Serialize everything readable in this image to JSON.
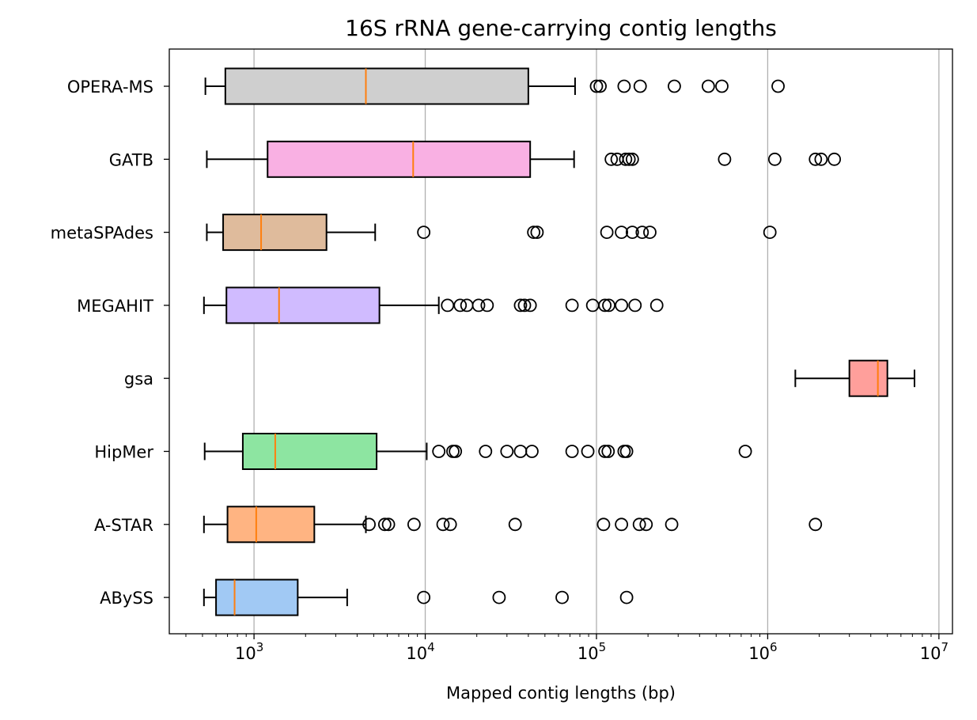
{
  "chart_data": {
    "type": "boxplot",
    "title": "16S rRNA gene-carrying contig lengths",
    "xlabel": "Mapped contig lengths (bp)",
    "ylabel": "",
    "xscale": "log",
    "xlim": [
      320,
      12000000
    ],
    "xticks": [
      {
        "value": 1000,
        "base": "10",
        "exp": "3"
      },
      {
        "value": 10000,
        "base": "10",
        "exp": "4"
      },
      {
        "value": 100000,
        "base": "10",
        "exp": "5"
      },
      {
        "value": 1000000,
        "base": "10",
        "exp": "6"
      },
      {
        "value": 10000000,
        "base": "10",
        "exp": "7"
      }
    ],
    "grid": "x-major",
    "median_color": "#ff7f0e",
    "series": [
      {
        "name": "OPERA-MS",
        "color": "#cfcfcf",
        "whisker_low": 520,
        "q1": 680,
        "median": 4500,
        "q3": 40000,
        "whisker_high": 75000,
        "outliers": [
          100000,
          105000,
          145000,
          180000,
          285000,
          450000,
          540000,
          1150000
        ]
      },
      {
        "name": "GATB",
        "color": "#f9b0e3",
        "whisker_low": 530,
        "q1": 1200,
        "median": 8500,
        "q3": 41000,
        "whisker_high": 74000,
        "outliers": [
          122000,
          132000,
          148000,
          155000,
          162000,
          560000,
          1100000,
          1900000,
          2050000,
          2450000
        ]
      },
      {
        "name": "metaSPAdes",
        "color": "#dfbb9c",
        "whisker_low": 530,
        "q1": 660,
        "median": 1100,
        "q3": 2650,
        "whisker_high": 5100,
        "outliers": [
          9800,
          43000,
          45000,
          115000,
          140000,
          162000,
          185000,
          205000,
          1030000
        ]
      },
      {
        "name": "MEGAHIT",
        "color": "#d0bbff",
        "whisker_low": 510,
        "q1": 690,
        "median": 1400,
        "q3": 5400,
        "whisker_high": 12000,
        "outliers": [
          13500,
          16000,
          17500,
          20500,
          23000,
          36000,
          38000,
          41000,
          72000,
          95000,
          112000,
          118000,
          140000,
          168000,
          225000
        ]
      },
      {
        "name": "gsa",
        "color": "#ff9f9b",
        "whisker_low": 1450000,
        "q1": 3000000,
        "median": 4400000,
        "q3": 5000000,
        "whisker_high": 7200000,
        "outliers": []
      },
      {
        "name": "HipMer",
        "color": "#8de5a1",
        "whisker_low": 515,
        "q1": 860,
        "median": 1330,
        "q3": 5200,
        "whisker_high": 10200,
        "outliers": [
          12000,
          14500,
          15000,
          22500,
          30000,
          36000,
          42000,
          72000,
          89000,
          112000,
          117000,
          145000,
          150000,
          740000
        ]
      },
      {
        "name": "A-STAR",
        "color": "#ffb482",
        "whisker_low": 510,
        "q1": 700,
        "median": 1030,
        "q3": 2250,
        "whisker_high": 4500,
        "outliers": [
          4700,
          5800,
          6100,
          8600,
          12700,
          14000,
          33500,
          110000,
          140000,
          178000,
          195000,
          275000,
          1900000
        ]
      },
      {
        "name": "ABySS",
        "color": "#a1c9f4",
        "whisker_low": 510,
        "q1": 600,
        "median": 770,
        "q3": 1800,
        "whisker_high": 3500,
        "outliers": [
          9800,
          27000,
          63000,
          150000
        ]
      }
    ]
  }
}
